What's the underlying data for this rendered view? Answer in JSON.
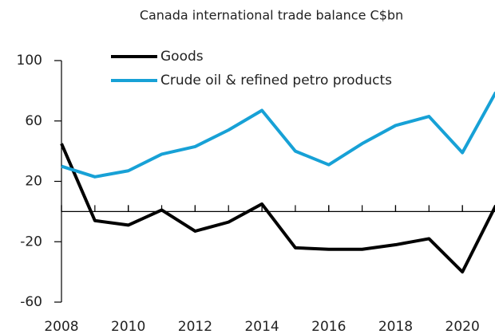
{
  "chart_data": {
    "type": "line",
    "title": "Canada international trade balance C$bn",
    "x": [
      2008,
      2009,
      2010,
      2011,
      2012,
      2013,
      2014,
      2015,
      2016,
      2017,
      2018,
      2019,
      2020,
      2021
    ],
    "series": [
      {
        "name": "Goods",
        "color": "#000000",
        "values": [
          45,
          -6,
          -9,
          1,
          -13,
          -7,
          5,
          -24,
          -25,
          -25,
          -22,
          -18,
          -40,
          4
        ]
      },
      {
        "name": "Crude oil & refined petro products",
        "color": "#17a1d6",
        "values": [
          30,
          23,
          27,
          38,
          43,
          54,
          67,
          40,
          31,
          45,
          57,
          63,
          39,
          79
        ]
      }
    ],
    "xlim": [
      2008,
      2021
    ],
    "xticks": [
      2008,
      2010,
      2012,
      2014,
      2016,
      2018,
      2020
    ],
    "ylim": [
      -60,
      100
    ],
    "yticks": [
      100,
      60,
      20,
      -20,
      -60
    ],
    "legend": "top"
  }
}
